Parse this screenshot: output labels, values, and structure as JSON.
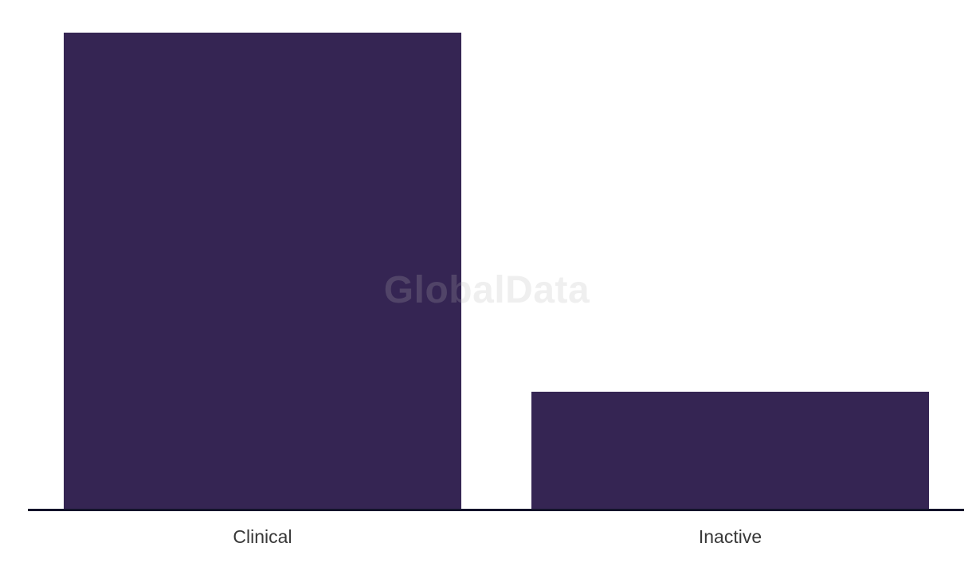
{
  "watermark": {
    "text": "GlobalData",
    "color": "rgba(180,180,180,0.22)"
  },
  "chart_data": {
    "type": "bar",
    "title": "",
    "xlabel": "",
    "ylabel": "",
    "categories": [
      "Clinical",
      "Inactive"
    ],
    "values": [
      598,
      147
    ],
    "value_note": "No y-axis or data labels shown; values estimated from bar pixel heights (ratio ~4:1)",
    "ylim": [
      0,
      598
    ],
    "grid": false,
    "legend": false,
    "bar_color": "#352553",
    "axis_line_color": "#13132b",
    "tick_label_color": "#383838"
  }
}
